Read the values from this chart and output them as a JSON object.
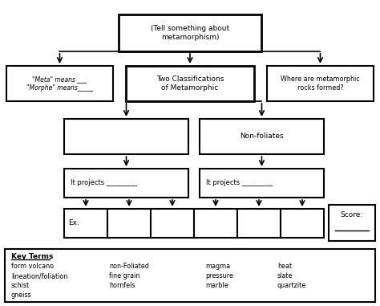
{
  "bg_color": "#ffffff",
  "title": "(Tell something about\nmetamorphism)",
  "box1_text": "\"Meta\" means ___\n\"Morphe\" means_____",
  "box2_text": "Two Classifications\nof Metamorphic",
  "box3_text": "Where are metamorphic\nrocks formed?",
  "box5_text": "Non-foliates",
  "box6_text": "It projects _________",
  "box7_text": "It projects _________",
  "ex_text": "Ex.",
  "score_text": "Score:",
  "key_terms_title": "Key Terms",
  "key_col1": [
    "form volcano",
    "lineation/foliation",
    "schist",
    "gneiss"
  ],
  "key_col2": [
    "non-Foliated",
    "fine grain",
    "hornfels"
  ],
  "key_col3": [
    "magma",
    "pressure",
    "marble"
  ],
  "key_col4": [
    "heat",
    "slate",
    "quartzite"
  ]
}
